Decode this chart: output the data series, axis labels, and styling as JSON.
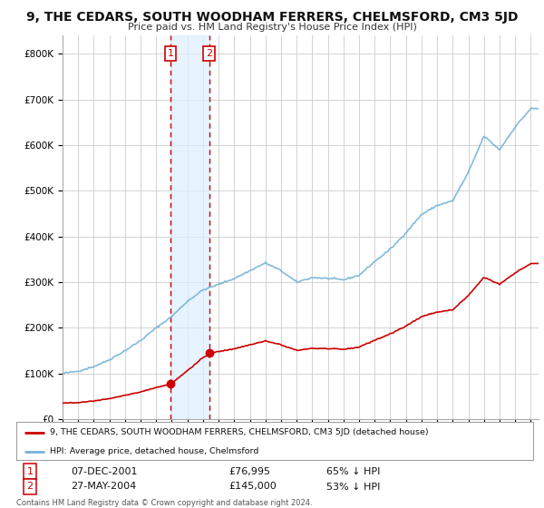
{
  "title": "9, THE CEDARS, SOUTH WOODHAM FERRERS, CHELMSFORD, CM3 5JD",
  "subtitle": "Price paid vs. HM Land Registry's House Price Index (HPI)",
  "hpi_color": "#74b3d8",
  "sale_color": "#cc0000",
  "shade_color": "#ddeeff",
  "transaction1_date": 2001.92,
  "transaction1_price": 76995,
  "transaction1_label": "1",
  "transaction2_date": 2004.4,
  "transaction2_price": 145000,
  "transaction2_label": "2",
  "legend_line1": "9, THE CEDARS, SOUTH WOODHAM FERRERS, CHELMSFORD, CM3 5JD (detached house)",
  "legend_line2": "HPI: Average price, detached house, Chelmsford",
  "table_row1": [
    "1",
    "07-DEC-2001",
    "£76,995",
    "65% ↓ HPI"
  ],
  "table_row2": [
    "2",
    "27-MAY-2004",
    "£145,000",
    "53% ↓ HPI"
  ],
  "footnote": "Contains HM Land Registry data © Crown copyright and database right 2024.\nThis data is licensed under the Open Government Licence v3.0.",
  "background_color": "#ffffff",
  "grid_color": "#cccccc",
  "ylim": [
    0,
    840000
  ],
  "yticks": [
    0,
    100000,
    200000,
    300000,
    400000,
    500000,
    600000,
    700000,
    800000
  ],
  "ytick_labels": [
    "£0",
    "£100K",
    "£200K",
    "£300K",
    "£400K",
    "£500K",
    "£600K",
    "£700K",
    "£800K"
  ],
  "xlim": [
    1995.0,
    2025.5
  ],
  "xticks": [
    1995,
    1996,
    1997,
    1998,
    1999,
    2000,
    2001,
    2002,
    2003,
    2004,
    2005,
    2006,
    2007,
    2008,
    2009,
    2010,
    2011,
    2012,
    2013,
    2014,
    2015,
    2016,
    2017,
    2018,
    2019,
    2020,
    2021,
    2022,
    2023,
    2024,
    2025
  ]
}
